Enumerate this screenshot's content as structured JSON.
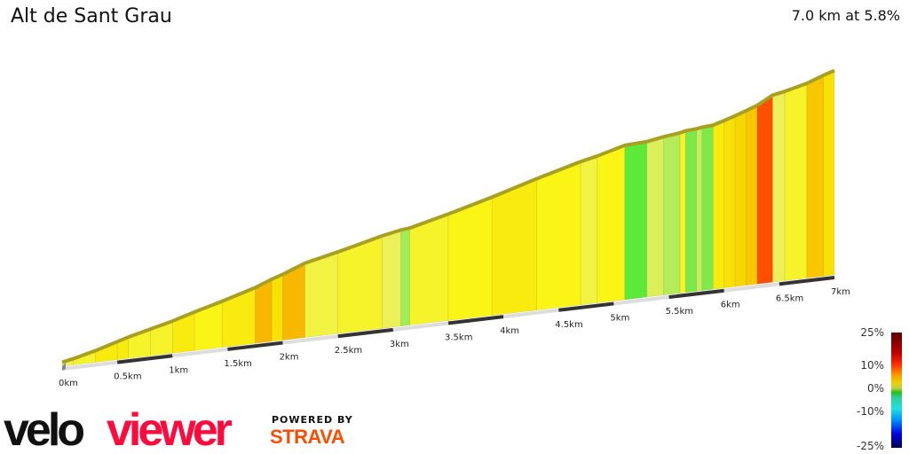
{
  "header": {
    "title": "Alt de Sant Grau",
    "summary": "7.0 km at 5.8%"
  },
  "chart_data": {
    "type": "area",
    "title": "Alt de Sant Grau",
    "distance_km": 7.0,
    "avg_gradient_pct": 5.8,
    "x_ticks": [
      "0km",
      "0.5km",
      "1km",
      "1.5km",
      "2km",
      "2.5km",
      "3km",
      "3.5km",
      "4km",
      "4.5km",
      "5km",
      "5.5km",
      "6km",
      "6.5km",
      "7km"
    ],
    "segments": [
      {
        "start_km": 0.0,
        "gradient_pct": 4
      },
      {
        "start_km": 0.1,
        "gradient_pct": 5
      },
      {
        "start_km": 0.3,
        "gradient_pct": 6
      },
      {
        "start_km": 0.5,
        "gradient_pct": 6
      },
      {
        "start_km": 0.6,
        "gradient_pct": 5
      },
      {
        "start_km": 0.8,
        "gradient_pct": 5
      },
      {
        "start_km": 1.0,
        "gradient_pct": 6
      },
      {
        "start_km": 1.2,
        "gradient_pct": 5.5
      },
      {
        "start_km": 1.45,
        "gradient_pct": 6
      },
      {
        "start_km": 1.75,
        "gradient_pct": 8
      },
      {
        "start_km": 1.9,
        "gradient_pct": 6.5
      },
      {
        "start_km": 2.0,
        "gradient_pct": 8
      },
      {
        "start_km": 2.2,
        "gradient_pct": 4.5
      },
      {
        "start_km": 2.5,
        "gradient_pct": 5
      },
      {
        "start_km": 2.9,
        "gradient_pct": 4
      },
      {
        "start_km": 3.07,
        "gradient_pct": 2
      },
      {
        "start_km": 3.15,
        "gradient_pct": 5
      },
      {
        "start_km": 3.5,
        "gradient_pct": 5.5
      },
      {
        "start_km": 3.9,
        "gradient_pct": 6
      },
      {
        "start_km": 4.3,
        "gradient_pct": 5.5
      },
      {
        "start_km": 4.7,
        "gradient_pct": 4.5
      },
      {
        "start_km": 4.85,
        "gradient_pct": 5.5
      },
      {
        "start_km": 5.1,
        "gradient_pct": 1
      },
      {
        "start_km": 5.3,
        "gradient_pct": 3.5
      },
      {
        "start_km": 5.45,
        "gradient_pct": 2.5
      },
      {
        "start_km": 5.6,
        "gradient_pct": 5
      },
      {
        "start_km": 5.65,
        "gradient_pct": 1.5
      },
      {
        "start_km": 5.75,
        "gradient_pct": 3
      },
      {
        "start_km": 5.8,
        "gradient_pct": 1.5
      },
      {
        "start_km": 5.9,
        "gradient_pct": 6
      },
      {
        "start_km": 6.0,
        "gradient_pct": 6.5
      },
      {
        "start_km": 6.1,
        "gradient_pct": 7
      },
      {
        "start_km": 6.2,
        "gradient_pct": 7.5
      },
      {
        "start_km": 6.3,
        "gradient_pct": 11
      },
      {
        "start_km": 6.44,
        "gradient_pct": 4
      },
      {
        "start_km": 6.55,
        "gradient_pct": 5
      },
      {
        "start_km": 6.75,
        "gradient_pct": 7.5
      },
      {
        "start_km": 6.9,
        "gradient_pct": 6.5
      }
    ],
    "legend": {
      "labels": [
        "25%",
        "10%",
        "0%",
        "-10%",
        "-25%"
      ]
    }
  },
  "branding": {
    "logo_velo": "velo",
    "logo_viewer": "viewer",
    "powered_by": "POWERED BY",
    "strava": "STRAVA"
  },
  "colors": {
    "logo_black": "#111111",
    "logo_red": "#ff0a3c",
    "strava": "#fc4c02",
    "ridge": "#a8a020"
  }
}
